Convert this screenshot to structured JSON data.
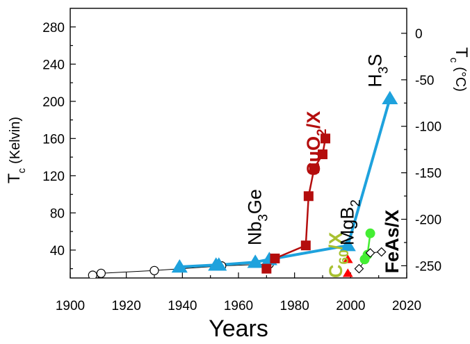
{
  "chart_data": {
    "type": "scatter",
    "xlabel": "Years",
    "ylabel_main": "T",
    "ylabel_sub": "c",
    "ylabel_unit": "(Kelvin)",
    "y2label_main": "T",
    "y2label_sub": "c",
    "y2label_unit": "(°C)",
    "xlim": [
      1900,
      2020
    ],
    "ylim": [
      10,
      300
    ],
    "xticks": [
      1900,
      1920,
      1940,
      1960,
      1980,
      2000,
      2020
    ],
    "yticks": [
      40,
      80,
      120,
      160,
      200,
      240,
      280
    ],
    "y2ticks": [
      0,
      -50,
      -100,
      -150,
      -200,
      -250
    ],
    "grid": false,
    "series": [
      {
        "key": "conventional",
        "color": "#000000",
        "marker": "circle-open",
        "connected": true,
        "points": [
          [
            1908,
            13
          ],
          [
            1911,
            15
          ],
          [
            1930,
            18
          ],
          [
            1954,
            23
          ],
          [
            1971,
            25
          ]
        ]
      },
      {
        "key": "hydrides",
        "color": "#1ea2dd",
        "marker": "triangle",
        "connected": true,
        "points": [
          [
            1939,
            22
          ],
          [
            1952,
            24
          ],
          [
            1953,
            24
          ],
          [
            1966,
            27
          ],
          [
            1971,
            30
          ],
          [
            1999,
            45
          ],
          [
            2014,
            203
          ]
        ]
      },
      {
        "key": "cuprates",
        "color": "#b40d0d",
        "marker": "square",
        "connected": true,
        "points": [
          [
            1970,
            20
          ],
          [
            1973,
            31
          ],
          [
            1984,
            45
          ],
          [
            1985,
            98
          ],
          [
            1987,
            128
          ],
          [
            1990,
            143
          ],
          [
            1991,
            160
          ]
        ]
      },
      {
        "key": "iron-based",
        "color": "#44ee33",
        "marker": "circle",
        "connected": true,
        "points": [
          [
            2005,
            30
          ],
          [
            2006,
            35
          ],
          [
            2007,
            58
          ]
        ]
      },
      {
        "key": "fullerides",
        "color": "#ff0000",
        "marker": "triangle",
        "connected": false,
        "points": [
          [
            1999,
            15
          ],
          [
            1999,
            30
          ]
        ]
      },
      {
        "key": "other",
        "color": "#000000",
        "marker": "diamond-open",
        "connected": true,
        "points": [
          [
            2003,
            20
          ],
          [
            2007,
            37
          ],
          [
            2011,
            38
          ]
        ]
      }
    ],
    "annotations": [
      {
        "text": "Nb",
        "sub": "3",
        "tail": "Ge",
        "color": "#000000",
        "x": 1968,
        "y": 45,
        "rotate": -90,
        "bold": false
      },
      {
        "text": "CuO",
        "sub": "2",
        "tail": "/X",
        "color": "#b40d0d",
        "x": 1989,
        "y": 120,
        "rotate": -90,
        "bold": true
      },
      {
        "text": "C",
        "sub": "60",
        "tail": "/X",
        "color": "#a8c030",
        "x": 1997,
        "y": 10,
        "rotate": -90,
        "bold": true
      },
      {
        "text": "MgB",
        "sub": "2",
        "tail": "",
        "color": "#000000",
        "x": 2001,
        "y": 45,
        "rotate": -90,
        "bold": false
      },
      {
        "text": "H",
        "sub": "3",
        "tail": "S",
        "color": "#000000",
        "x": 2011,
        "y": 215,
        "rotate": -90,
        "bold": false
      },
      {
        "text": "FeAs/X",
        "sub": "",
        "tail": "",
        "color": "#000000",
        "x": 2017,
        "y": 15,
        "rotate": -90,
        "bold": true
      }
    ]
  }
}
